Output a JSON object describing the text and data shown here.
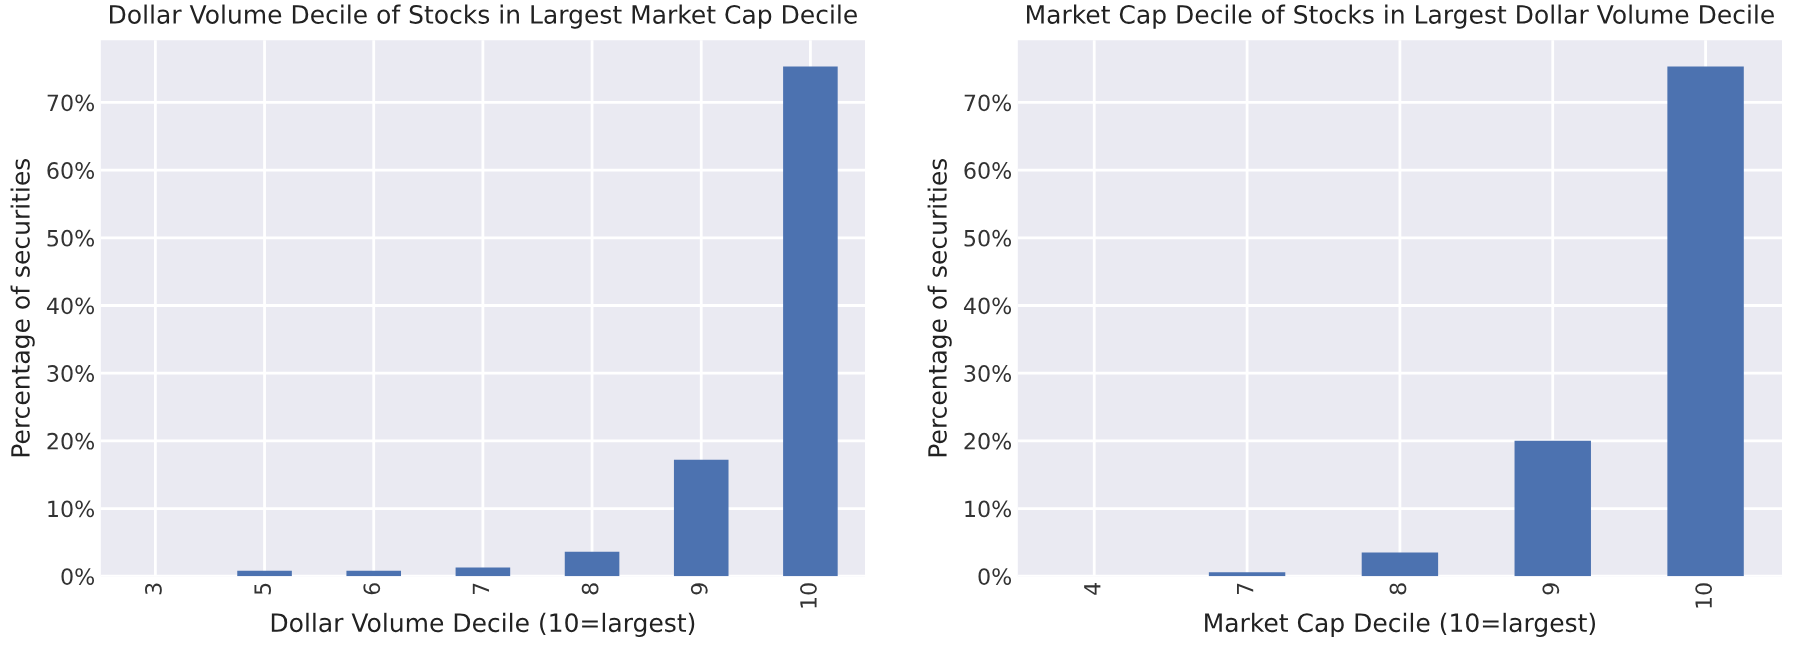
{
  "chart_data": [
    {
      "type": "bar",
      "title": "Dollar Volume Decile of Stocks in Largest Market Cap Decile",
      "xlabel": "Dollar Volume Decile (10=largest)",
      "ylabel": "Percentage of securities",
      "categories": [
        "3",
        "5",
        "6",
        "7",
        "8",
        "9",
        "10"
      ],
      "values": [
        null,
        0.8,
        0.8,
        1.3,
        3.6,
        17.2,
        75.3
      ],
      "color": "#4c72b0",
      "ylim": [
        0,
        79.2
      ],
      "yticks": [
        {
          "value": 0,
          "label": "0%"
        },
        {
          "value": 10,
          "label": "10%"
        },
        {
          "value": 20,
          "label": "20%"
        },
        {
          "value": 30,
          "label": "30%"
        },
        {
          "value": 40,
          "label": "40%"
        },
        {
          "value": 50,
          "label": "50%"
        },
        {
          "value": 60,
          "label": "60%"
        },
        {
          "value": 70,
          "label": "70%"
        }
      ],
      "grid": true,
      "legend": false
    },
    {
      "type": "bar",
      "title": "Market Cap Decile of Stocks in Largest Dollar Volume Decile",
      "xlabel": "Market Cap Decile (10=largest)",
      "ylabel": "Percentage of securities",
      "categories": [
        "4",
        "7",
        "8",
        "9",
        "10"
      ],
      "values": [
        null,
        0.6,
        3.5,
        20.0,
        75.3
      ],
      "color": "#4c72b0",
      "ylim": [
        0,
        79.2
      ],
      "yticks": [
        {
          "value": 0,
          "label": "0%"
        },
        {
          "value": 10,
          "label": "10%"
        },
        {
          "value": 20,
          "label": "20%"
        },
        {
          "value": 30,
          "label": "30%"
        },
        {
          "value": 40,
          "label": "40%"
        },
        {
          "value": 50,
          "label": "50%"
        },
        {
          "value": 60,
          "label": "60%"
        },
        {
          "value": 70,
          "label": "70%"
        }
      ],
      "grid": true,
      "legend": false
    }
  ]
}
